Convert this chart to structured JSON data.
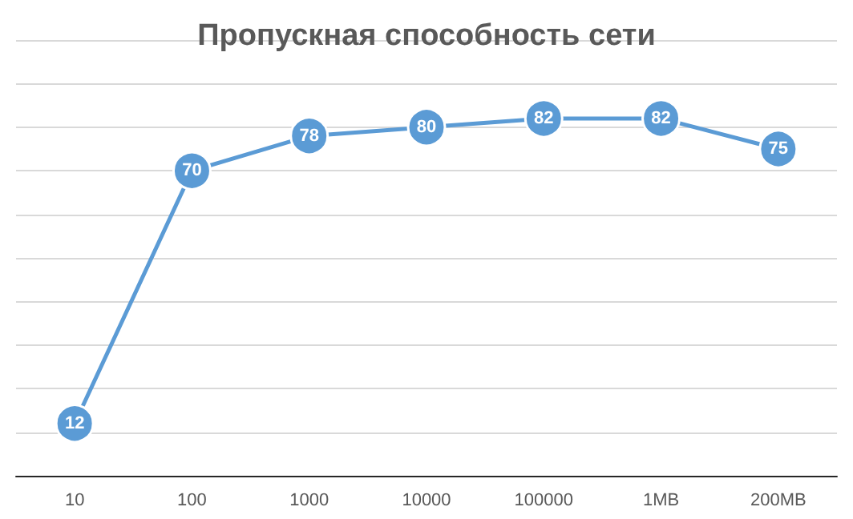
{
  "chart_data": {
    "type": "line",
    "title": "Пропускная способность сети",
    "categories": [
      "10",
      "100",
      "1000",
      "10000",
      "100000",
      "1MB",
      "200MB"
    ],
    "series": [
      {
        "color": "#5b9bd5",
        "values": [
          12,
          70,
          78,
          80,
          82,
          82,
          75
        ]
      }
    ],
    "ylim": [
      0,
      100
    ],
    "yticks": [
      0,
      10,
      20,
      30,
      40,
      50,
      60,
      70,
      80,
      90,
      100
    ],
    "tick_labels": "x",
    "grid": "y",
    "data_labels": true,
    "marker": "circle",
    "line_style": "solid"
  }
}
